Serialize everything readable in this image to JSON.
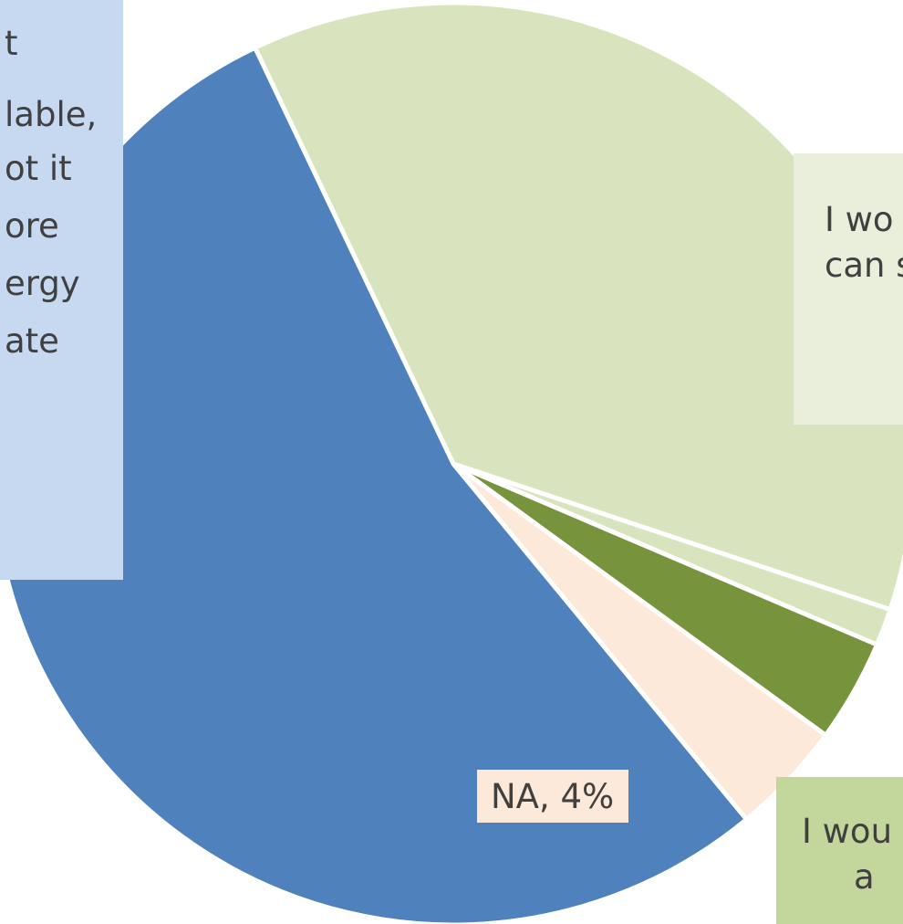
{
  "chart_data": {
    "type": "pie",
    "title": "",
    "start_angle_deg": -25.5,
    "direction": "clockwise",
    "slices": [
      {
        "key": "green_large",
        "value": 37.2,
        "color": "#d7e4bd",
        "label_lines": [
          "I wo",
          "can s"
        ],
        "label_bg": "#e9efdb"
      },
      {
        "key": "green_thin",
        "value": 1.3,
        "color": "#d7e4bd",
        "label_lines": [],
        "label_bg": ""
      },
      {
        "key": "green_dark",
        "value": 3.6,
        "color": "#77933c",
        "label_lines": [
          "I wou",
          "a"
        ],
        "label_bg": "#c3d69b"
      },
      {
        "key": "na",
        "value": 4,
        "color": "#fde9d9",
        "label_lines": [
          "NA, 4%"
        ],
        "label_bg": "#fde9d9"
      },
      {
        "key": "blue",
        "value": 53.9,
        "color": "#4f81bd",
        "label_lines": [
          "t",
          "lable,",
          "ot it",
          "ore",
          "ergy",
          "ate"
        ],
        "label_bg": "#c6d9f1"
      }
    ]
  }
}
